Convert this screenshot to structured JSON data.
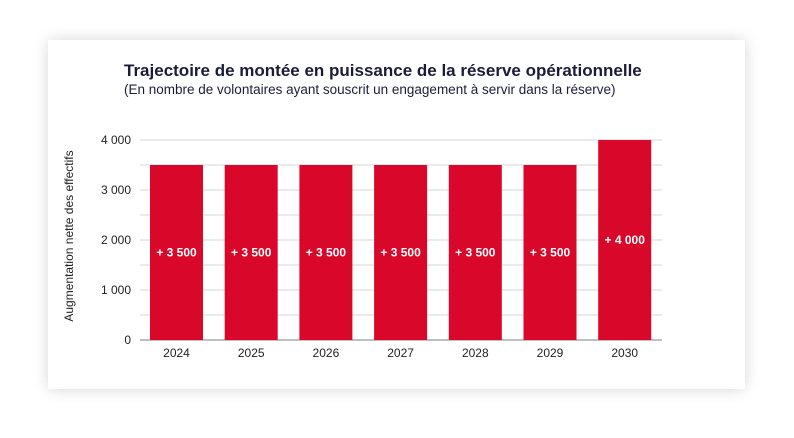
{
  "chart_data": {
    "type": "bar",
    "title": "Trajectoire de montée en puissance de la réserve opérationnelle",
    "subtitle": "(En nombre de volontaires ayant souscrit un engagement à servir dans la réserve)",
    "xlabel": "",
    "ylabel": "Augmentation nette des effectifs",
    "categories": [
      "2024",
      "2025",
      "2026",
      "2027",
      "2028",
      "2029",
      "2030"
    ],
    "values": [
      3500,
      3500,
      3500,
      3500,
      3500,
      3500,
      4000
    ],
    "data_labels": [
      "+ 3 500",
      "+ 3 500",
      "+ 3 500",
      "+ 3 500",
      "+ 3 500",
      "+ 3 500",
      "+ 4 000"
    ],
    "ylim": [
      0,
      4000
    ],
    "yticks": [
      0,
      1000,
      2000,
      3000,
      4000
    ],
    "ytick_labels": [
      "0",
      "1 000",
      "2 000",
      "3 000",
      "4 000"
    ],
    "grid": true,
    "bar_color": "#d9072a"
  }
}
